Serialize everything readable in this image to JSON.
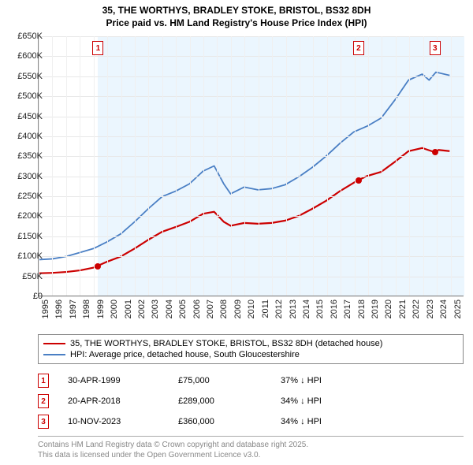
{
  "title_line1": "35, THE WORTHYS, BRADLEY STOKE, BRISTOL, BS32 8DH",
  "title_line2": "Price paid vs. HM Land Registry's House Price Index (HPI)",
  "chart": {
    "type": "line",
    "x_min": 1995,
    "x_max": 2026,
    "x_ticks": [
      1995,
      1996,
      1997,
      1998,
      1999,
      2000,
      2001,
      2002,
      2003,
      2004,
      2005,
      2006,
      2007,
      2008,
      2009,
      2010,
      2011,
      2012,
      2013,
      2014,
      2015,
      2016,
      2017,
      2018,
      2019,
      2020,
      2021,
      2022,
      2023,
      2024,
      2025
    ],
    "y_min": 0,
    "y_max": 650,
    "y_ticks": [
      0,
      50,
      100,
      150,
      200,
      250,
      300,
      350,
      400,
      450,
      500,
      550,
      600,
      650
    ],
    "y_tick_labels": [
      "£0",
      "£50K",
      "£100K",
      "£150K",
      "£200K",
      "£250K",
      "£300K",
      "£350K",
      "£400K",
      "£450K",
      "£500K",
      "£550K",
      "£600K",
      "£650K"
    ],
    "shade_start": 1999.33,
    "shade_end": 2026,
    "background_color": "#ffffff",
    "grid_color": "#e8e8e8",
    "shade_color": "#dbeffd",
    "series": [
      {
        "name": "price_paid",
        "color": "#cc0000",
        "width": 2.2,
        "points": [
          [
            1995,
            56
          ],
          [
            1996,
            57
          ],
          [
            1997,
            59
          ],
          [
            1998,
            63
          ],
          [
            1999,
            70
          ],
          [
            1999.33,
            75
          ],
          [
            2000,
            85
          ],
          [
            2001,
            98
          ],
          [
            2002,
            118
          ],
          [
            2003,
            140
          ],
          [
            2004,
            160
          ],
          [
            2005,
            172
          ],
          [
            2006,
            185
          ],
          [
            2007,
            205
          ],
          [
            2007.8,
            210
          ],
          [
            2008.5,
            185
          ],
          [
            2009,
            175
          ],
          [
            2010,
            182
          ],
          [
            2011,
            180
          ],
          [
            2012,
            182
          ],
          [
            2013,
            188
          ],
          [
            2014,
            200
          ],
          [
            2015,
            218
          ],
          [
            2016,
            238
          ],
          [
            2017,
            262
          ],
          [
            2018.3,
            289
          ],
          [
            2019,
            300
          ],
          [
            2020,
            310
          ],
          [
            2021,
            335
          ],
          [
            2022,
            362
          ],
          [
            2023,
            370
          ],
          [
            2023.86,
            360
          ],
          [
            2024.2,
            365
          ],
          [
            2025,
            362
          ]
        ]
      },
      {
        "name": "hpi",
        "color": "#4a7fc4",
        "width": 1.8,
        "points": [
          [
            1995,
            90
          ],
          [
            1996,
            92
          ],
          [
            1997,
            98
          ],
          [
            1998,
            108
          ],
          [
            1999,
            118
          ],
          [
            2000,
            135
          ],
          [
            2001,
            155
          ],
          [
            2002,
            185
          ],
          [
            2003,
            218
          ],
          [
            2004,
            248
          ],
          [
            2005,
            262
          ],
          [
            2006,
            280
          ],
          [
            2007,
            312
          ],
          [
            2007.8,
            325
          ],
          [
            2008.5,
            280
          ],
          [
            2009,
            255
          ],
          [
            2010,
            272
          ],
          [
            2011,
            265
          ],
          [
            2012,
            268
          ],
          [
            2013,
            278
          ],
          [
            2014,
            298
          ],
          [
            2015,
            322
          ],
          [
            2016,
            350
          ],
          [
            2017,
            382
          ],
          [
            2018,
            410
          ],
          [
            2019,
            425
          ],
          [
            2020,
            445
          ],
          [
            2021,
            490
          ],
          [
            2022,
            540
          ],
          [
            2023,
            555
          ],
          [
            2023.5,
            540
          ],
          [
            2024,
            560
          ],
          [
            2025,
            552
          ]
        ]
      }
    ],
    "sale_markers": [
      {
        "n": 1,
        "x": 1999.33,
        "y": 75
      },
      {
        "n": 2,
        "x": 2018.3,
        "y": 289
      },
      {
        "n": 3,
        "x": 2023.86,
        "y": 360
      }
    ]
  },
  "legend": [
    {
      "color": "#cc0000",
      "label": "35, THE WORTHYS, BRADLEY STOKE, BRISTOL, BS32 8DH (detached house)"
    },
    {
      "color": "#4a7fc4",
      "label": "HPI: Average price, detached house, South Gloucestershire"
    }
  ],
  "sales": [
    {
      "n": "1",
      "date": "30-APR-1999",
      "price": "£75,000",
      "diff": "37% ↓ HPI"
    },
    {
      "n": "2",
      "date": "20-APR-2018",
      "price": "£289,000",
      "diff": "34% ↓ HPI"
    },
    {
      "n": "3",
      "date": "10-NOV-2023",
      "price": "£360,000",
      "diff": "34% ↓ HPI"
    }
  ],
  "footer_line1": "Contains HM Land Registry data © Crown copyright and database right 2025.",
  "footer_line2": "This data is licensed under the Open Government Licence v3.0."
}
